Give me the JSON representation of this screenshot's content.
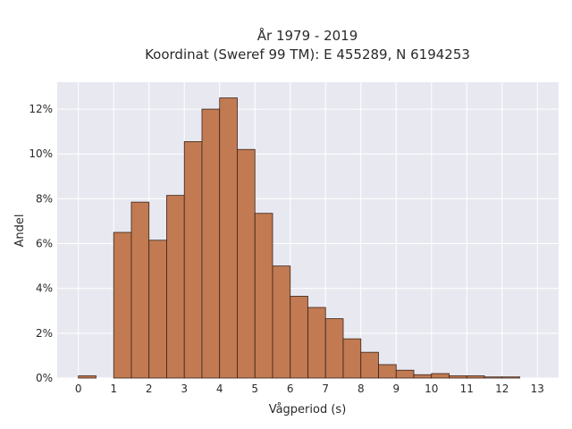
{
  "chart_data": {
    "type": "bar",
    "title": [
      "År 1979 - 2019",
      "Koordinat (Sweref 99 TM): E 455289, N 6194253"
    ],
    "xlabel": "Vågperiod (s)",
    "ylabel": "Andel",
    "xlim": [
      -0.6,
      13.6
    ],
    "ylim": [
      0,
      13.2
    ],
    "x_ticks": [
      0,
      1,
      2,
      3,
      4,
      5,
      6,
      7,
      8,
      9,
      10,
      11,
      12,
      13
    ],
    "y_ticks": [
      0,
      2,
      4,
      6,
      8,
      10,
      12
    ],
    "y_tick_labels": [
      "0%",
      "2%",
      "4%",
      "6%",
      "8%",
      "10%",
      "12%"
    ],
    "bin_width": 0.5,
    "bins_start": [
      0.0,
      1.0,
      1.5,
      2.0,
      2.5,
      3.0,
      3.5,
      4.0,
      4.5,
      5.0,
      5.5,
      6.0,
      6.5,
      7.0,
      7.5,
      8.0,
      8.5,
      9.0,
      9.5,
      10.0,
      10.5,
      11.0,
      11.5,
      12.0
    ],
    "values": [
      0.1,
      6.5,
      7.85,
      6.15,
      8.15,
      10.55,
      12.0,
      12.5,
      10.2,
      7.35,
      5.0,
      3.65,
      3.15,
      2.65,
      1.75,
      1.15,
      0.6,
      0.35,
      0.15,
      0.2,
      0.1,
      0.1,
      0.05,
      0.05
    ],
    "grid": true,
    "colors": {
      "bar_fill": "#c17a52",
      "bar_edge": "#3a2418",
      "plot_background": "#e8e8f1",
      "grid": "#ffffff"
    }
  }
}
